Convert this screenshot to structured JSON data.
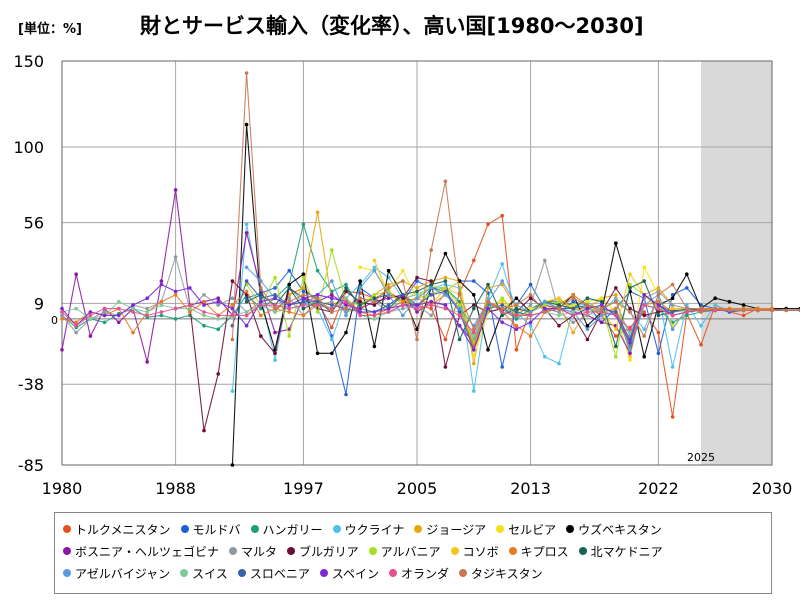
{
  "header": {
    "unit_label": "[単位：%]",
    "title": "財とサービス輸入（変化率）、高い国[1980～2030]"
  },
  "chart_data": {
    "type": "line",
    "title": "財とサービス輸入（変化率）、高い国[1980～2030]",
    "unit": "%",
    "xlim": [
      1980,
      2030
    ],
    "ylim": [
      -85,
      150
    ],
    "x_ticks": [
      "1980",
      "1988",
      "1997",
      "2005",
      "2013",
      "2022",
      "2030"
    ],
    "y_ticks": [
      "150",
      "100",
      "56",
      "9",
      "-38",
      "-85"
    ],
    "zero_label": "0",
    "forecast_start": 2025,
    "forecast_label": "2025",
    "grid": true,
    "legend_position": "bottom",
    "series": [
      {
        "name": "トルクメニスタン",
        "color": "#e8501e",
        "start": 1993,
        "values": [
          2,
          8,
          4,
          14,
          18,
          10,
          -5,
          16,
          15,
          12,
          16,
          10,
          8,
          6,
          -12,
          15,
          34,
          55,
          60,
          -18,
          6,
          9,
          12,
          5,
          7,
          2,
          -10,
          -5,
          4,
          -8,
          -57,
          3,
          -15,
          8,
          4,
          2,
          6,
          6,
          5,
          5,
          5,
          5,
          5,
          5,
          5,
          5,
          5,
          5
        ]
      },
      {
        "name": "モルドバ",
        "color": "#1f5fd6",
        "start": 1993,
        "values": [
          12,
          15,
          18,
          28,
          16,
          12,
          -10,
          -44,
          18,
          12,
          14,
          10,
          22,
          18,
          16,
          22,
          22,
          15,
          -28,
          8,
          20,
          6,
          4,
          10,
          8,
          -2,
          6,
          16,
          12,
          -20,
          14,
          18,
          8,
          6,
          4,
          5,
          5,
          5,
          5,
          5,
          5,
          5,
          5,
          5,
          5,
          5
        ]
      },
      {
        "name": "ハンガリー",
        "color": "#1aa079",
        "start": 1980,
        "values": [
          2,
          -5,
          0,
          -2,
          3,
          6,
          1,
          2,
          0,
          2,
          -4,
          -6,
          2,
          14,
          6,
          12,
          20,
          55,
          28,
          16,
          20,
          6,
          4,
          8,
          14,
          6,
          18,
          18,
          10,
          -14,
          8,
          6,
          0,
          6,
          10,
          10,
          8,
          6,
          4,
          2,
          -16,
          8,
          6,
          -2,
          2,
          4,
          5,
          5,
          5,
          5,
          5
        ]
      },
      {
        "name": "ウクライナ",
        "color": "#4fc0ec",
        "start": 1992,
        "values": [
          -42,
          55,
          14,
          -24,
          18,
          10,
          6,
          -12,
          12,
          20,
          30,
          24,
          12,
          14,
          18,
          20,
          18,
          -42,
          12,
          32,
          4,
          -4,
          -22,
          -26,
          6,
          10,
          4,
          12,
          4,
          -6,
          14,
          -28,
          8,
          -4,
          8,
          5,
          5,
          5,
          5,
          5,
          5,
          5,
          5,
          5,
          5
        ]
      },
      {
        "name": "ジョージア",
        "color": "#e8a60f",
        "start": 1996,
        "values": [
          14,
          18,
          62,
          10,
          4,
          6,
          14,
          20,
          22,
          18,
          22,
          24,
          22,
          -26,
          18,
          20,
          6,
          4,
          10,
          8,
          -8,
          6,
          12,
          14,
          -22,
          14,
          18,
          8,
          6,
          6,
          5,
          5,
          5,
          5,
          5
        ]
      },
      {
        "name": "セルビア",
        "color": "#f2e21b",
        "start": 2001,
        "values": [
          30,
          28,
          16,
          28,
          12,
          20,
          16,
          22,
          -22,
          4,
          12,
          4,
          6,
          8,
          4,
          8,
          10,
          12,
          4,
          -24,
          30,
          14,
          -4,
          4,
          6,
          6,
          5,
          5,
          5,
          5
        ]
      },
      {
        "name": "ウズベキスタン",
        "color": "#000000",
        "start": 1992,
        "values": [
          -85,
          113,
          10,
          -18,
          20,
          26,
          -20,
          -20,
          -8,
          22,
          -16,
          28,
          14,
          -6,
          18,
          38,
          22,
          14,
          -18,
          4,
          12,
          4,
          10,
          6,
          14,
          -4,
          4,
          44,
          16,
          -22,
          8,
          12,
          26,
          6,
          12,
          10,
          8,
          6,
          6,
          6,
          6,
          6,
          6
        ]
      },
      {
        "name": "ボスニア・ヘルツェゴビナ",
        "color": "#8c16a6",
        "start": 1980,
        "values": [
          -18,
          26,
          -10,
          6,
          -2,
          6,
          -25,
          22,
          75,
          8,
          10,
          12,
          2,
          50,
          18,
          -8,
          -6,
          12,
          10,
          14,
          8,
          6,
          10,
          12,
          14,
          4,
          10,
          8,
          -4,
          -14,
          4,
          6,
          2,
          4,
          8,
          6,
          4,
          2,
          -2,
          -4,
          -20,
          14,
          8,
          2,
          4,
          5,
          5,
          5,
          5,
          5,
          5
        ]
      },
      {
        "name": "マルタ",
        "color": "#909aa3",
        "start": 1980,
        "values": [
          2,
          -8,
          0,
          4,
          2,
          8,
          6,
          10,
          36,
          6,
          14,
          8,
          12,
          4,
          10,
          6,
          12,
          2,
          8,
          10,
          4,
          12,
          10,
          4,
          6,
          8,
          2,
          16,
          6,
          -12,
          10,
          6,
          2,
          8,
          34,
          4,
          -2,
          2,
          6,
          10,
          -10,
          12,
          16,
          8,
          6,
          6,
          6,
          6,
          6,
          6,
          6
        ]
      },
      {
        "name": "ブルガリア",
        "color": "#6b0d36",
        "start": 1988,
        "values": [
          6,
          8,
          -65,
          -32,
          22,
          14,
          -10,
          -20,
          18,
          12,
          6,
          4,
          16,
          10,
          8,
          14,
          12,
          24,
          22,
          -28,
          2,
          8,
          4,
          6,
          4,
          12,
          6,
          -4,
          2,
          -12,
          4,
          18,
          6,
          2,
          4,
          5,
          5,
          5,
          5,
          5,
          5,
          5,
          5
        ]
      },
      {
        "name": "アルバニア",
        "color": "#a6e021",
        "start": 1993,
        "values": [
          20,
          8,
          24,
          -10,
          24,
          4,
          40,
          10,
          8,
          14,
          16,
          8,
          12,
          14,
          18,
          8,
          -14,
          4,
          12,
          2,
          4,
          8,
          10,
          6,
          4,
          8,
          -22,
          20,
          14,
          6,
          6,
          6,
          6,
          6,
          6,
          6,
          6,
          6
        ]
      },
      {
        "name": "コソボ",
        "color": "#f5c71a",
        "start": 2002,
        "values": [
          34,
          14,
          10,
          16,
          8,
          18,
          14,
          -18,
          6,
          10,
          2,
          4,
          10,
          12,
          6,
          8,
          4,
          -6,
          26,
          14,
          6,
          6,
          6,
          6,
          6,
          6,
          6,
          6,
          6
        ]
      },
      {
        "name": "キプロス",
        "color": "#e87a1f",
        "start": 1980,
        "values": [
          0,
          -2,
          4,
          2,
          6,
          -8,
          4,
          10,
          14,
          4,
          10,
          2,
          8,
          16,
          2,
          6,
          4,
          2,
          10,
          8,
          12,
          4,
          2,
          6,
          10,
          12,
          8,
          14,
          6,
          -16,
          10,
          4,
          -4,
          -10,
          4,
          8,
          14,
          8,
          4,
          6,
          -14,
          8,
          10,
          4,
          6,
          6,
          6,
          6,
          6,
          6,
          6
        ]
      },
      {
        "name": "北マケドニア",
        "color": "#16635a",
        "start": 1993,
        "values": [
          10,
          14,
          8,
          18,
          6,
          10,
          4,
          18,
          8,
          12,
          6,
          14,
          16,
          20,
          22,
          -12,
          6,
          20,
          2,
          6,
          4,
          10,
          8,
          6,
          12,
          10,
          -16,
          18,
          22,
          2,
          4,
          5,
          5,
          5,
          5,
          5,
          5,
          5
        ]
      },
      {
        "name": "アゼルバイジャン",
        "color": "#5c9ae0",
        "start": 1993,
        "values": [
          30,
          22,
          12,
          6,
          8,
          14,
          22,
          2,
          18,
          28,
          14,
          2,
          12,
          18,
          14,
          6,
          -4,
          10,
          22,
          8,
          4,
          10,
          6,
          4,
          -6,
          2,
          4,
          -18,
          8,
          14,
          -6,
          6,
          5,
          5,
          5,
          5,
          5,
          5
        ]
      },
      {
        "name": "スイス",
        "color": "#7ec99a",
        "start": 1980,
        "values": [
          4,
          6,
          0,
          2,
          10,
          6,
          4,
          8,
          6,
          6,
          2,
          0,
          2,
          4,
          8,
          4,
          6,
          8,
          10,
          6,
          12,
          2,
          0,
          4,
          8,
          6,
          8,
          6,
          4,
          -10,
          10,
          6,
          4,
          2,
          4,
          2,
          4,
          6,
          4,
          4,
          -8,
          8,
          6,
          4,
          5,
          5,
          5,
          5,
          5,
          5,
          5
        ]
      },
      {
        "name": "スロベニア",
        "color": "#3a62a8",
        "start": 1992,
        "values": [
          -4,
          22,
          12,
          14,
          8,
          10,
          10,
          8,
          6,
          4,
          4,
          8,
          14,
          8,
          14,
          16,
          4,
          -18,
          6,
          8,
          4,
          2,
          4,
          6,
          6,
          8,
          6,
          4,
          -12,
          14,
          8,
          4,
          6,
          5,
          5,
          5,
          5,
          5,
          5,
          5,
          5
        ]
      },
      {
        "name": "スペイン",
        "color": "#7a28d8",
        "start": 1980,
        "values": [
          6,
          -4,
          4,
          2,
          2,
          8,
          12,
          20,
          16,
          18,
          8,
          10,
          6,
          -4,
          10,
          12,
          8,
          12,
          14,
          12,
          10,
          4,
          4,
          6,
          8,
          8,
          10,
          8,
          -4,
          -18,
          6,
          -2,
          -6,
          -2,
          6,
          6,
          2,
          6,
          8,
          2,
          -14,
          14,
          8,
          2,
          4,
          5,
          5,
          5,
          5,
          5,
          5
        ]
      },
      {
        "name": "オランダ",
        "color": "#e6508c",
        "start": 1980,
        "values": [
          4,
          -4,
          2,
          6,
          6,
          4,
          2,
          4,
          6,
          8,
          4,
          2,
          2,
          2,
          8,
          8,
          6,
          8,
          8,
          6,
          10,
          2,
          2,
          4,
          8,
          6,
          8,
          6,
          2,
          -8,
          10,
          4,
          2,
          2,
          4,
          6,
          2,
          4,
          4,
          2,
          -6,
          8,
          6,
          2,
          4,
          5,
          5,
          5,
          5,
          5,
          5
        ]
      },
      {
        "name": "タジキスタン",
        "color": "#c87850",
        "start": 1992,
        "values": [
          -12,
          143,
          18,
          6,
          10,
          14,
          12,
          4,
          6,
          12,
          10,
          18,
          22,
          -12,
          40,
          80,
          14,
          -6,
          10,
          6,
          8,
          14,
          4,
          6,
          12,
          8,
          6,
          10,
          4,
          -10,
          14,
          20,
          6,
          4,
          6,
          5,
          5,
          5,
          5,
          5,
          5,
          5,
          5
        ]
      }
    ]
  }
}
